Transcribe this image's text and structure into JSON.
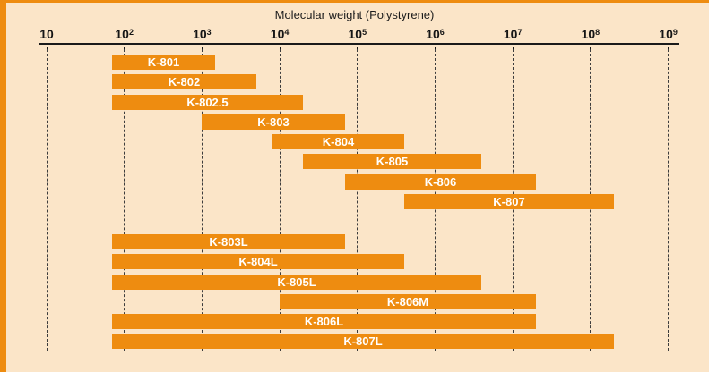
{
  "title": "Molecular weight (Polystyrene)",
  "accent_color": "#ee8c10",
  "background_color": "#fbe5c8",
  "chart_data": {
    "type": "bar",
    "subtype": "horizontal-range-bars",
    "title": "Molecular weight (Polystyrene)",
    "xlabel": "Molecular weight (Polystyrene)",
    "ylabel": "",
    "x_scale": "log10",
    "xlim": [
      10,
      1000000000
    ],
    "grid": "vertical-dashed",
    "legend": "none",
    "bar_color": "#ee8c10",
    "bar_label_color": "#ffffff",
    "x_ticks": [
      {
        "base": "10",
        "sup": ""
      },
      {
        "base": "10",
        "sup": "2"
      },
      {
        "base": "10",
        "sup": "3"
      },
      {
        "base": "10",
        "sup": "4"
      },
      {
        "base": "10",
        "sup": "5"
      },
      {
        "base": "10",
        "sup": "6"
      },
      {
        "base": "10",
        "sup": "7"
      },
      {
        "base": "10",
        "sup": "8"
      },
      {
        "base": "10",
        "sup": "9"
      }
    ],
    "x_tick_values": [
      10,
      100,
      1000,
      10000,
      100000,
      1000000,
      10000000,
      100000000,
      1000000000
    ],
    "series": [
      {
        "name": "K-801",
        "group": 1,
        "min": 70,
        "max": 1500
      },
      {
        "name": "K-802",
        "group": 1,
        "min": 70,
        "max": 5000
      },
      {
        "name": "K-802.5",
        "group": 1,
        "min": 70,
        "max": 20000
      },
      {
        "name": "K-803",
        "group": 1,
        "min": 1000,
        "max": 70000
      },
      {
        "name": "K-804",
        "group": 1,
        "min": 8000,
        "max": 400000
      },
      {
        "name": "K-805",
        "group": 1,
        "min": 20000,
        "max": 4000000
      },
      {
        "name": "K-806",
        "group": 1,
        "min": 70000,
        "max": 20000000
      },
      {
        "name": "K-807",
        "group": 1,
        "min": 400000,
        "max": 200000000
      },
      {
        "name": "K-803L",
        "group": 2,
        "min": 70,
        "max": 70000
      },
      {
        "name": "K-804L",
        "group": 2,
        "min": 70,
        "max": 400000
      },
      {
        "name": "K-805L",
        "group": 2,
        "min": 70,
        "max": 4000000
      },
      {
        "name": "K-806M",
        "group": 2,
        "min": 10000,
        "max": 20000000
      },
      {
        "name": "K-806L",
        "group": 2,
        "min": 70,
        "max": 20000000
      },
      {
        "name": "K-807L",
        "group": 2,
        "min": 70,
        "max": 200000000
      }
    ]
  }
}
